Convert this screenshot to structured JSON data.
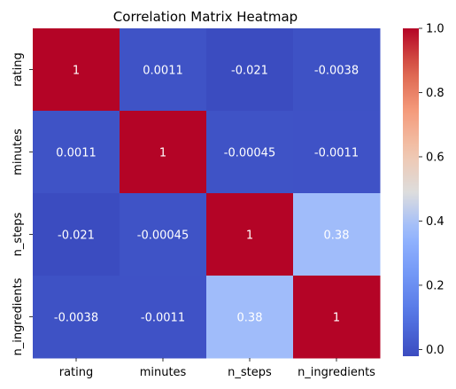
{
  "chart_data": {
    "type": "heatmap",
    "title": "Correlation Matrix Heatmap",
    "x_categories": [
      "rating",
      "minutes",
      "n_steps",
      "n_ingredients"
    ],
    "y_categories": [
      "rating",
      "minutes",
      "n_steps",
      "n_ingredients"
    ],
    "values": [
      [
        1,
        0.0011,
        -0.021,
        -0.0038
      ],
      [
        0.0011,
        1,
        -0.00045,
        -0.0011
      ],
      [
        -0.021,
        -0.00045,
        1,
        0.38
      ],
      [
        -0.0038,
        -0.0011,
        0.38,
        1
      ]
    ],
    "cell_labels": [
      [
        "1",
        "0.0011",
        "-0.021",
        "-0.0038"
      ],
      [
        "0.0011",
        "1",
        "-0.00045",
        "-0.0011"
      ],
      [
        "-0.021",
        "-0.00045",
        "1",
        "0.38"
      ],
      [
        "-0.0038",
        "-0.0011",
        "0.38",
        "1"
      ]
    ],
    "colorbar": {
      "colormap": "coolwarm",
      "range": [
        -0.021,
        1
      ],
      "ticks": [
        0.0,
        0.2,
        0.4,
        0.6,
        0.8,
        1.0
      ],
      "tick_labels": [
        "0.0",
        "0.2",
        "0.4",
        "0.6",
        "0.8",
        "1.0"
      ]
    }
  }
}
